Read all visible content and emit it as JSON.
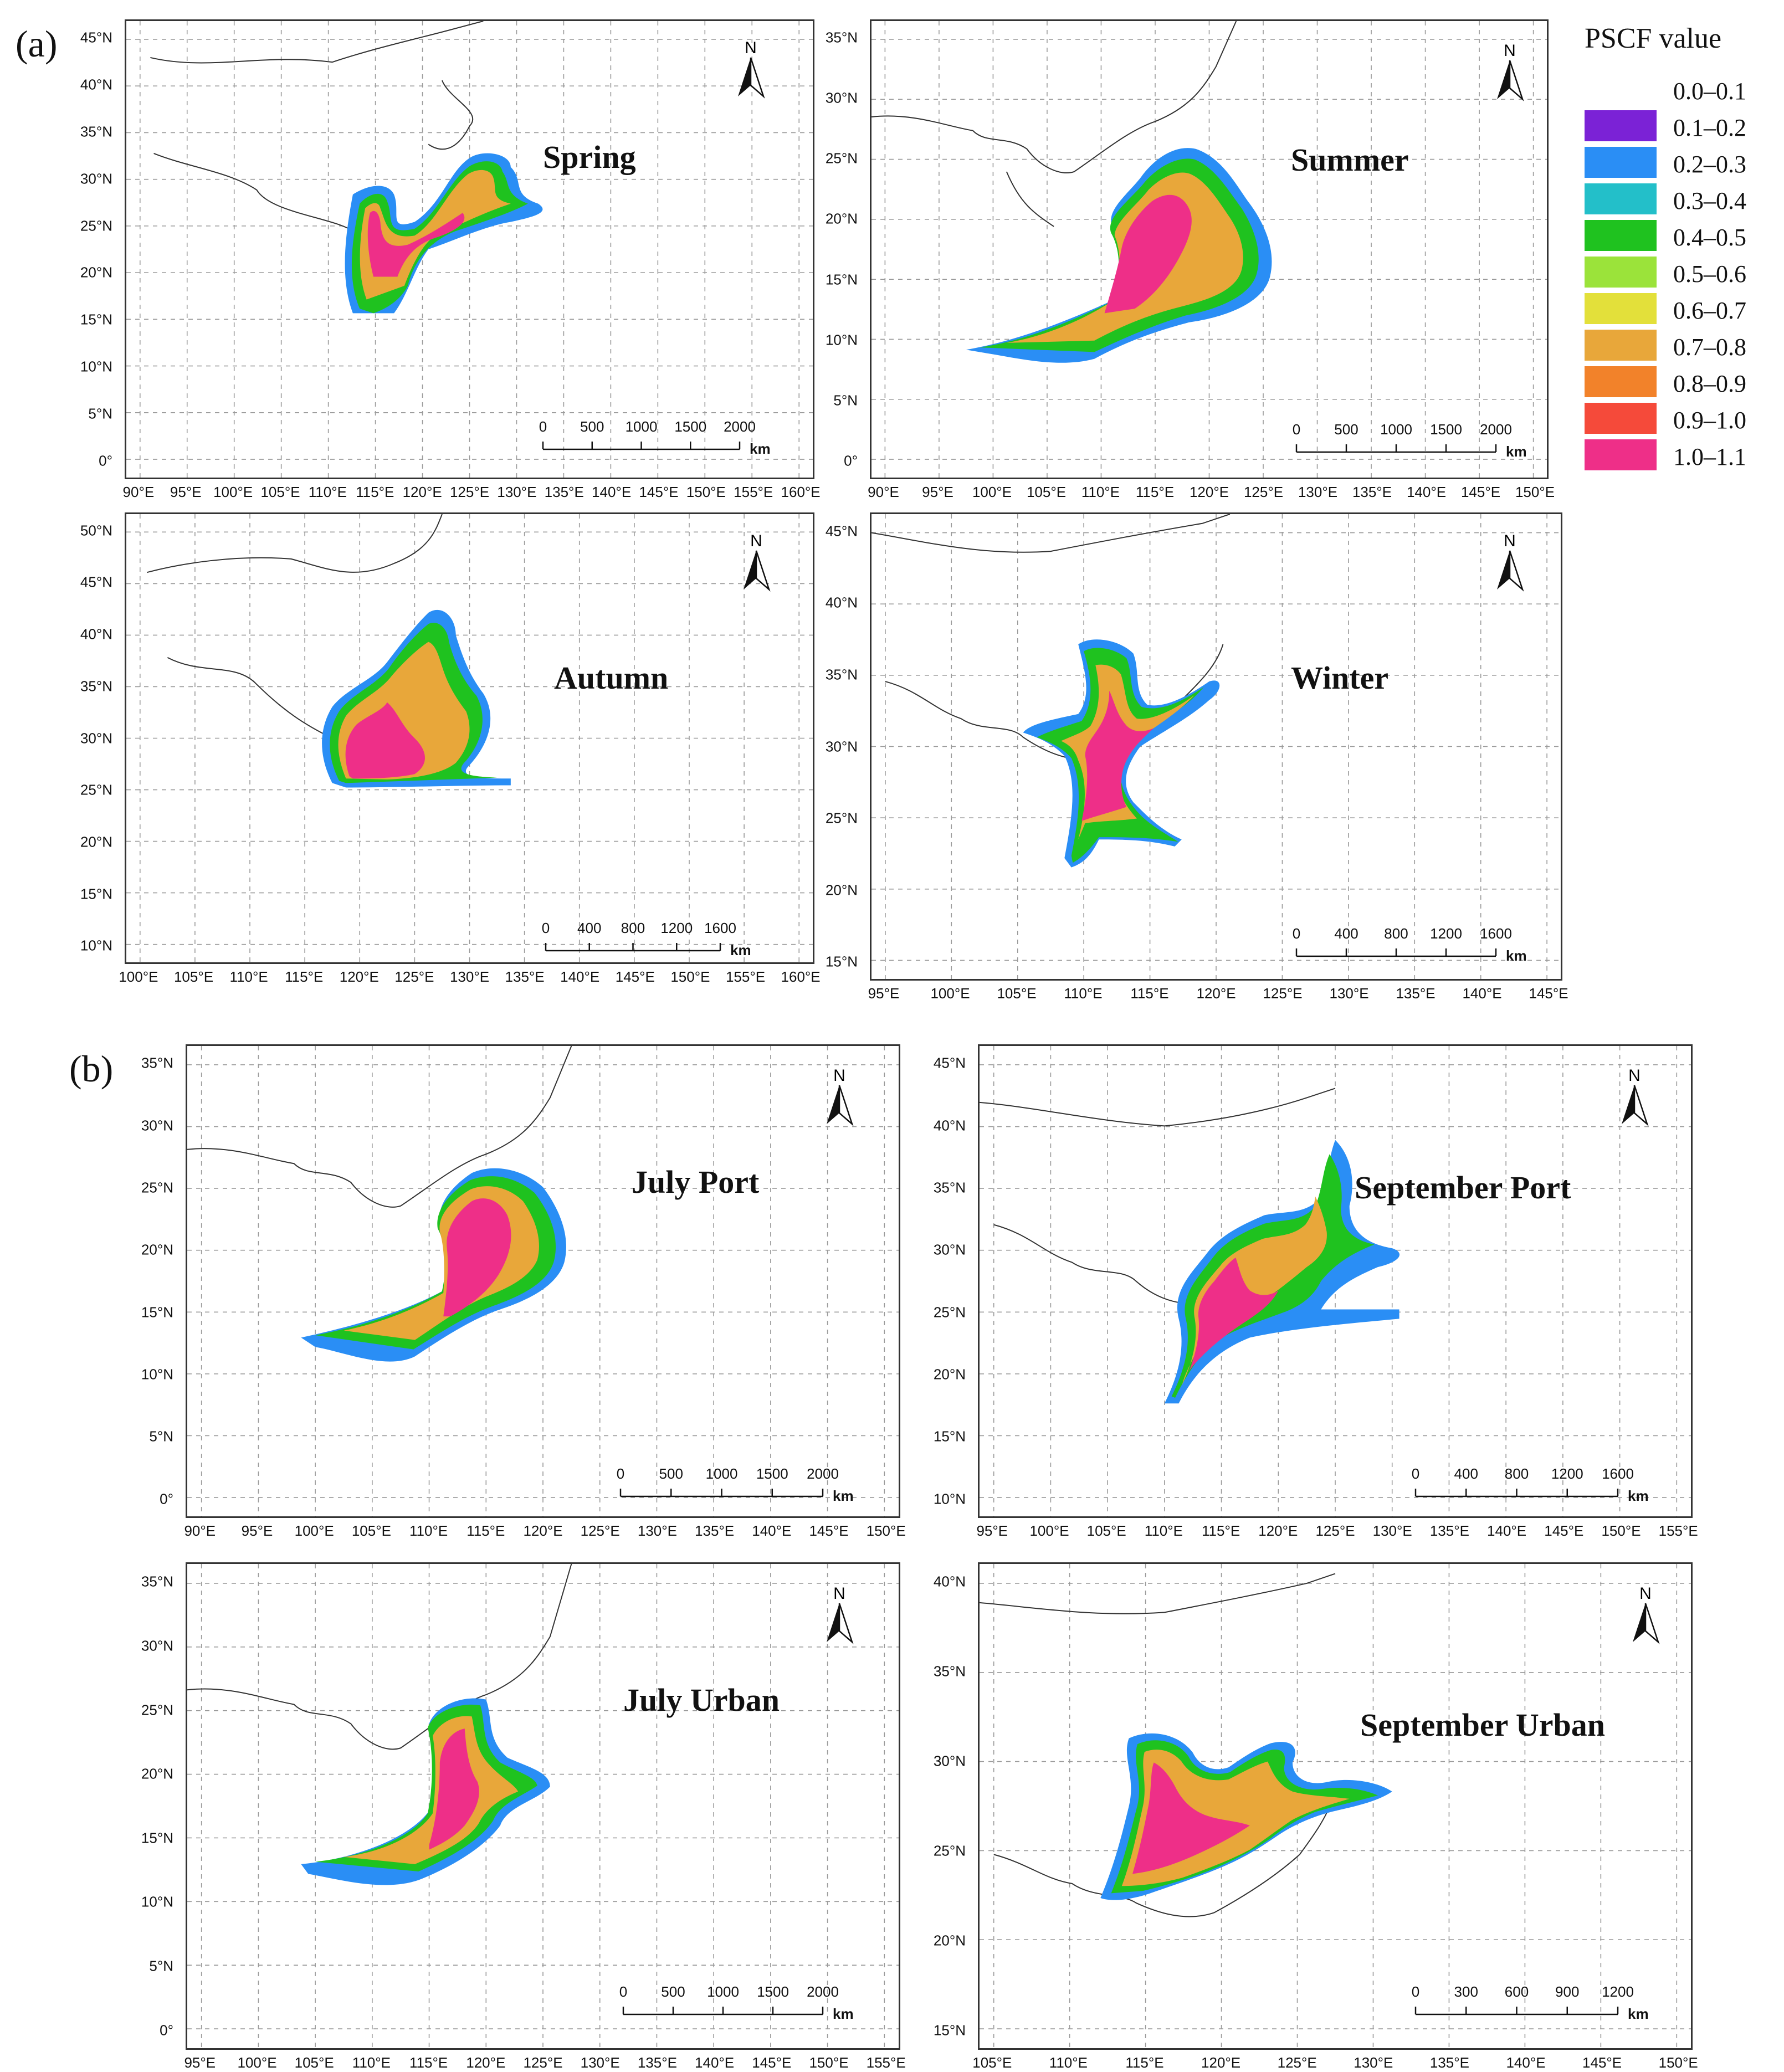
{
  "figure": {
    "section_a_label": "(a)",
    "section_b_label": "(b)"
  },
  "legend": {
    "title": "PSCF value",
    "items": [
      {
        "label": "0.0–0.1",
        "color": "#ffffff"
      },
      {
        "label": "0.1–0.2",
        "color": "#7b22d6"
      },
      {
        "label": "0.2–0.3",
        "color": "#2a8ef5"
      },
      {
        "label": "0.3–0.4",
        "color": "#23bfc9"
      },
      {
        "label": "0.4–0.5",
        "color": "#1fc21f"
      },
      {
        "label": "0.5–0.6",
        "color": "#9be33a"
      },
      {
        "label": "0.6–0.7",
        "color": "#e3e03a"
      },
      {
        "label": "0.7–0.8",
        "color": "#e8a73a"
      },
      {
        "label": "0.8–0.9",
        "color": "#f2822a"
      },
      {
        "label": "0.9–1.0",
        "color": "#f54a3a"
      },
      {
        "label": "1.0–1.1",
        "color": "#ee2f88"
      }
    ]
  },
  "panels": [
    {
      "id": "spring",
      "title": "Spring",
      "north": "N",
      "lat_labels": [
        "45°N",
        "40°N",
        "35°N",
        "30°N",
        "25°N",
        "20°N",
        "15°N",
        "10°N",
        "5°N",
        "0°"
      ],
      "lon_labels": [
        "90°E",
        "95°E",
        "100°E",
        "105°E",
        "110°E",
        "115°E",
        "120°E",
        "125°E",
        "130°E",
        "135°E",
        "140°E",
        "145°E",
        "150°E",
        "155°E",
        "160°E"
      ],
      "scale": {
        "ticks": [
          "0",
          "500",
          "1000",
          "1500",
          "2000"
        ],
        "unit": "km"
      }
    },
    {
      "id": "summer",
      "title": "Summer",
      "north": "N",
      "lat_labels": [
        "35°N",
        "30°N",
        "25°N",
        "20°N",
        "15°N",
        "10°N",
        "5°N",
        "0°"
      ],
      "lon_labels": [
        "90°E",
        "95°E",
        "100°E",
        "105°E",
        "110°E",
        "115°E",
        "120°E",
        "125°E",
        "130°E",
        "135°E",
        "140°E",
        "145°E",
        "150°E"
      ],
      "scale": {
        "ticks": [
          "0",
          "500",
          "1000",
          "1500",
          "2000"
        ],
        "unit": "km"
      }
    },
    {
      "id": "autumn",
      "title": "Autumn",
      "north": "N",
      "lat_labels": [
        "50°N",
        "45°N",
        "40°N",
        "35°N",
        "30°N",
        "25°N",
        "20°N",
        "15°N",
        "10°N"
      ],
      "lon_labels": [
        "100°E",
        "105°E",
        "110°E",
        "115°E",
        "120°E",
        "125°E",
        "130°E",
        "135°E",
        "140°E",
        "145°E",
        "150°E",
        "155°E",
        "160°E"
      ],
      "scale": {
        "ticks": [
          "0",
          "400",
          "800",
          "1200",
          "1600"
        ],
        "unit": "km"
      }
    },
    {
      "id": "winter",
      "title": "Winter",
      "north": "N",
      "lat_labels": [
        "45°N",
        "40°N",
        "35°N",
        "30°N",
        "25°N",
        "20°N",
        "15°N"
      ],
      "lon_labels": [
        "95°E",
        "100°E",
        "105°E",
        "110°E",
        "115°E",
        "120°E",
        "125°E",
        "130°E",
        "135°E",
        "140°E",
        "145°E"
      ],
      "scale": {
        "ticks": [
          "0",
          "400",
          "800",
          "1200",
          "1600"
        ],
        "unit": "km"
      }
    },
    {
      "id": "july_port",
      "title": "July Port",
      "north": "N",
      "lat_labels": [
        "35°N",
        "30°N",
        "25°N",
        "20°N",
        "15°N",
        "10°N",
        "5°N",
        "0°"
      ],
      "lon_labels": [
        "90°E",
        "95°E",
        "100°E",
        "105°E",
        "110°E",
        "115°E",
        "120°E",
        "125°E",
        "130°E",
        "135°E",
        "140°E",
        "145°E",
        "150°E"
      ],
      "scale": {
        "ticks": [
          "0",
          "500",
          "1000",
          "1500",
          "2000"
        ],
        "unit": "km"
      }
    },
    {
      "id": "september_port",
      "title": "September Port",
      "north": "N",
      "lat_labels": [
        "45°N",
        "40°N",
        "35°N",
        "30°N",
        "25°N",
        "20°N",
        "15°N",
        "10°N"
      ],
      "lon_labels": [
        "95°E",
        "100°E",
        "105°E",
        "110°E",
        "115°E",
        "120°E",
        "125°E",
        "130°E",
        "135°E",
        "140°E",
        "145°E",
        "150°E",
        "155°E"
      ],
      "scale": {
        "ticks": [
          "0",
          "400",
          "800",
          "1200",
          "1600"
        ],
        "unit": "km"
      }
    },
    {
      "id": "july_urban",
      "title": "July Urban",
      "north": "N",
      "lat_labels": [
        "35°N",
        "30°N",
        "25°N",
        "20°N",
        "15°N",
        "10°N",
        "5°N",
        "0°"
      ],
      "lon_labels": [
        "95°E",
        "100°E",
        "105°E",
        "110°E",
        "115°E",
        "120°E",
        "125°E",
        "130°E",
        "135°E",
        "140°E",
        "145°E",
        "150°E",
        "155°E"
      ],
      "scale": {
        "ticks": [
          "0",
          "500",
          "1000",
          "1500",
          "2000"
        ],
        "unit": "km"
      }
    },
    {
      "id": "september_urban",
      "title": "September Urban",
      "north": "N",
      "lat_labels": [
        "40°N",
        "35°N",
        "30°N",
        "25°N",
        "20°N",
        "15°N"
      ],
      "lon_labels": [
        "105°E",
        "110°E",
        "115°E",
        "120°E",
        "125°E",
        "130°E",
        "135°E",
        "140°E",
        "145°E",
        "150°E"
      ],
      "scale": {
        "ticks": [
          "0",
          "300",
          "600",
          "900",
          "1200"
        ],
        "unit": "km"
      }
    }
  ]
}
